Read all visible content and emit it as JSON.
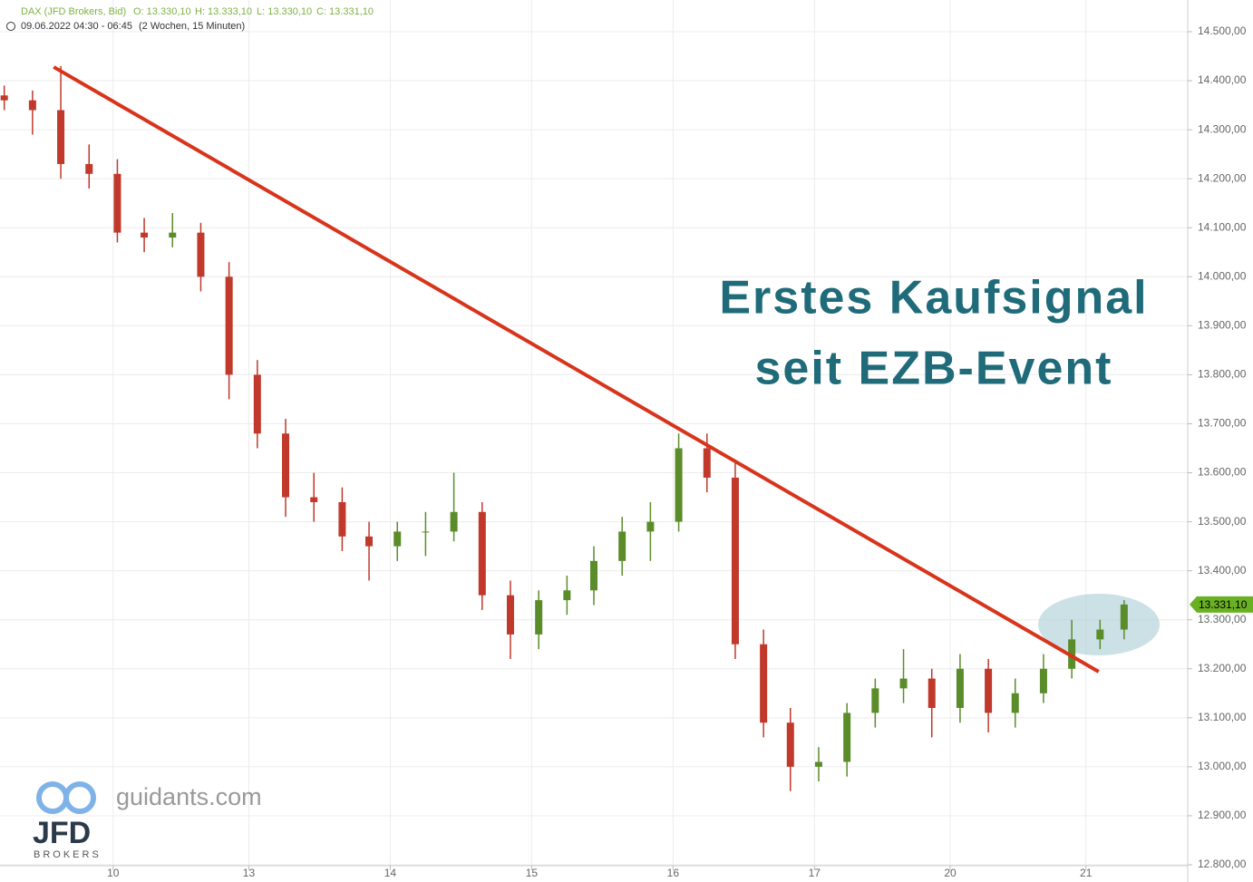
{
  "chart_data": {
    "type": "candlestick",
    "header": {
      "symbol": "DAX (JFD Brokers, Bid)",
      "ohlc_labels": [
        "O: 13.330,10",
        "H: 13.333,10",
        "L: 13.330,10",
        "C: 13.331,10"
      ],
      "range": "09.06.2022 04:30 - 06:45",
      "period": "(2 Wochen, 15 Minuten)"
    },
    "annotations": [
      "Erstes Kaufsignal",
      "seit EZB-Event"
    ],
    "logo": {
      "site": "guidants.com",
      "brand": "JFD",
      "sub": "BROKERS"
    },
    "up_color": "#5b8c2a",
    "down_color": "#c0392b",
    "x": [
      -0.77,
      -0.57,
      -0.37,
      -0.17,
      0.03,
      0.22,
      0.42,
      0.62,
      0.82,
      1.02,
      1.22,
      1.42,
      1.62,
      1.81,
      2.01,
      2.21,
      2.41,
      2.61,
      2.81,
      3.01,
      3.21,
      3.4,
      3.6,
      3.8,
      4.0,
      4.2,
      4.4,
      4.6,
      4.79,
      4.99,
      5.19,
      5.39,
      5.59,
      5.79,
      5.99,
      6.19,
      6.38,
      6.58,
      6.78,
      6.98,
      7.15
    ],
    "open": [
      14370,
      14360,
      14340,
      14230,
      14210,
      14090,
      14080,
      14090,
      14000,
      13800,
      13680,
      13550,
      13540,
      13470,
      13450,
      13480,
      13480,
      13520,
      13350,
      13270,
      13340,
      13360,
      13420,
      13480,
      13500,
      13650,
      13590,
      13250,
      13090,
      13000,
      13010,
      13110,
      13160,
      13180,
      13120,
      13200,
      13110,
      13150,
      13200,
      13260,
      13280
    ],
    "high": [
      14390,
      14380,
      14430,
      14270,
      14240,
      14120,
      14130,
      14110,
      14030,
      13830,
      13710,
      13600,
      13570,
      13500,
      13500,
      13520,
      13600,
      13540,
      13380,
      13360,
      13390,
      13450,
      13510,
      13540,
      13680,
      13680,
      13620,
      13280,
      13120,
      13040,
      13130,
      13180,
      13240,
      13200,
      13230,
      13220,
      13180,
      13230,
      13300,
      13300,
      13340
    ],
    "low": [
      14340,
      14290,
      14200,
      14180,
      14070,
      14050,
      14060,
      13970,
      13750,
      13650,
      13510,
      13500,
      13440,
      13380,
      13420,
      13430,
      13460,
      13320,
      13220,
      13240,
      13310,
      13330,
      13390,
      13420,
      13480,
      13560,
      13220,
      13060,
      12950,
      12970,
      12980,
      13080,
      13130,
      13060,
      13090,
      13070,
      13080,
      13130,
      13180,
      13240,
      13260
    ],
    "close": [
      14360,
      14340,
      14230,
      14210,
      14090,
      14080,
      14090,
      14000,
      13800,
      13680,
      13550,
      13540,
      13470,
      13450,
      13480,
      13480,
      13520,
      13350,
      13270,
      13340,
      13360,
      13420,
      13480,
      13500,
      13650,
      13590,
      13250,
      13090,
      13000,
      13010,
      13110,
      13160,
      13180,
      13120,
      13200,
      13110,
      13150,
      13200,
      13260,
      13280,
      13331.1
    ],
    "last_price": 13331.1,
    "last_price_label": "13.331,10",
    "last_color": "#6ab023",
    "trendline": {
      "x": [
        -0.42,
        6.97
      ],
      "y": [
        14428,
        13194
      ],
      "color": "#d8341c"
    },
    "xlim": [
      -0.8,
      7.6
    ],
    "ylim": [
      12800,
      14500
    ],
    "xticks": [
      {
        "value": 0,
        "label": "10"
      },
      {
        "value": 0.96,
        "label": "13"
      },
      {
        "value": 1.96,
        "label": "14"
      },
      {
        "value": 2.96,
        "label": "15"
      },
      {
        "value": 3.96,
        "label": "16"
      },
      {
        "value": 4.96,
        "label": "17"
      },
      {
        "value": 5.92,
        "label": "20"
      },
      {
        "value": 6.88,
        "label": "21"
      }
    ],
    "yticks": [
      {
        "value": 12800,
        "label": "12.800,00"
      },
      {
        "value": 12900,
        "label": "12.900,00"
      },
      {
        "value": 13000,
        "label": "13.000,00"
      },
      {
        "value": 13100,
        "label": "13.100,00"
      },
      {
        "value": 13200,
        "label": "13.200,00"
      },
      {
        "value": 13300,
        "label": "13.300,00"
      },
      {
        "value": 13400,
        "label": "13.400,00"
      },
      {
        "value": 13500,
        "label": "13.500,00"
      },
      {
        "value": 13600,
        "label": "13.600,00"
      },
      {
        "value": 13700,
        "label": "13.700,00"
      },
      {
        "value": 13800,
        "label": "13.800,00"
      },
      {
        "value": 13900,
        "label": "13.900,00"
      },
      {
        "value": 14000,
        "label": "14.000,00"
      },
      {
        "value": 14100,
        "label": "14.100,00"
      },
      {
        "value": 14200,
        "label": "14.200,00"
      },
      {
        "value": 14300,
        "label": "14.300,00"
      },
      {
        "value": 14400,
        "label": "14.400,00"
      },
      {
        "value": 14500,
        "label": "14.500,00"
      }
    ],
    "grid": true
  }
}
